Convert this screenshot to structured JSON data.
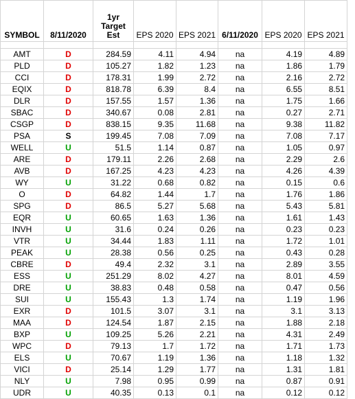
{
  "headers": {
    "symbol": "SYMBOL",
    "date1": "8/11/2020",
    "target": "1yr Target Est",
    "eps2020a": "EPS 2020",
    "eps2021a": "EPS 2021",
    "date2": "6/11/2020",
    "eps2020b": "EPS 2020",
    "eps2021b": "EPS 2021"
  },
  "signal_colors": {
    "D": "#e00000",
    "U": "#00a000",
    "S": "#000000"
  },
  "rows": [
    [
      "AMT",
      "D",
      "284.59",
      "4.11",
      "4.94",
      "na",
      "4.19",
      "4.89"
    ],
    [
      "PLD",
      "D",
      "105.27",
      "1.82",
      "1.23",
      "na",
      "1.86",
      "1.79"
    ],
    [
      "CCI",
      "D",
      "178.31",
      "1.99",
      "2.72",
      "na",
      "2.16",
      "2.72"
    ],
    [
      "EQIX",
      "D",
      "818.78",
      "6.39",
      "8.4",
      "na",
      "6.55",
      "8.51"
    ],
    [
      "DLR",
      "D",
      "157.55",
      "1.57",
      "1.36",
      "na",
      "1.75",
      "1.66"
    ],
    [
      "SBAC",
      "D",
      "340.67",
      "0.08",
      "2.81",
      "na",
      "0.27",
      "2.71"
    ],
    [
      "CSGP",
      "D",
      "838.15",
      "9.35",
      "11.68",
      "na",
      "9.38",
      "11.82"
    ],
    [
      "PSA",
      "S",
      "199.45",
      "7.08",
      "7.09",
      "na",
      "7.08",
      "7.17"
    ],
    [
      "WELL",
      "U",
      "51.5",
      "1.14",
      "0.87",
      "na",
      "1.05",
      "0.97"
    ],
    [
      "ARE",
      "D",
      "179.11",
      "2.26",
      "2.68",
      "na",
      "2.29",
      "2.6"
    ],
    [
      "AVB",
      "D",
      "167.25",
      "4.23",
      "4.23",
      "na",
      "4.26",
      "4.39"
    ],
    [
      "WY",
      "U",
      "31.22",
      "0.68",
      "0.82",
      "na",
      "0.15",
      "0.6"
    ],
    [
      "O",
      "D",
      "64.82",
      "1.44",
      "1.7",
      "na",
      "1.76",
      "1.86"
    ],
    [
      "SPG",
      "D",
      "86.5",
      "5.27",
      "5.68",
      "na",
      "5.43",
      "5.81"
    ],
    [
      "EQR",
      "U",
      "60.65",
      "1.63",
      "1.36",
      "na",
      "1.61",
      "1.43"
    ],
    [
      "INVH",
      "U",
      "31.6",
      "0.24",
      "0.26",
      "na",
      "0.23",
      "0.23"
    ],
    [
      "VTR",
      "U",
      "34.44",
      "1.83",
      "1.11",
      "na",
      "1.72",
      "1.01"
    ],
    [
      "PEAK",
      "U",
      "28.38",
      "0.56",
      "0.25",
      "na",
      "0.43",
      "0.28"
    ],
    [
      "CBRE",
      "D",
      "49.4",
      "2.32",
      "3.1",
      "na",
      "2.89",
      "3.55"
    ],
    [
      "ESS",
      "U",
      "251.29",
      "8.02",
      "4.27",
      "na",
      "8.01",
      "4.59"
    ],
    [
      "DRE",
      "U",
      "38.83",
      "0.48",
      "0.58",
      "na",
      "0.47",
      "0.56"
    ],
    [
      "SUI",
      "U",
      "155.43",
      "1.3",
      "1.74",
      "na",
      "1.19",
      "1.96"
    ],
    [
      "EXR",
      "D",
      "101.5",
      "3.07",
      "3.1",
      "na",
      "3.1",
      "3.13"
    ],
    [
      "MAA",
      "D",
      "124.54",
      "1.87",
      "2.15",
      "na",
      "1.88",
      "2.18"
    ],
    [
      "BXP",
      "U",
      "109.25",
      "5.26",
      "2.21",
      "na",
      "4.31",
      "2.49"
    ],
    [
      "WPC",
      "D",
      "79.13",
      "1.7",
      "1.72",
      "na",
      "1.71",
      "1.73"
    ],
    [
      "ELS",
      "U",
      "70.67",
      "1.19",
      "1.36",
      "na",
      "1.18",
      "1.32"
    ],
    [
      "VICI",
      "D",
      "25.14",
      "1.29",
      "1.77",
      "na",
      "1.31",
      "1.81"
    ],
    [
      "NLY",
      "U",
      "7.98",
      "0.95",
      "0.99",
      "na",
      "0.87",
      "0.91"
    ],
    [
      "UDR",
      "U",
      "40.35",
      "0.13",
      "0.1",
      "na",
      "0.12",
      "0.12"
    ]
  ]
}
